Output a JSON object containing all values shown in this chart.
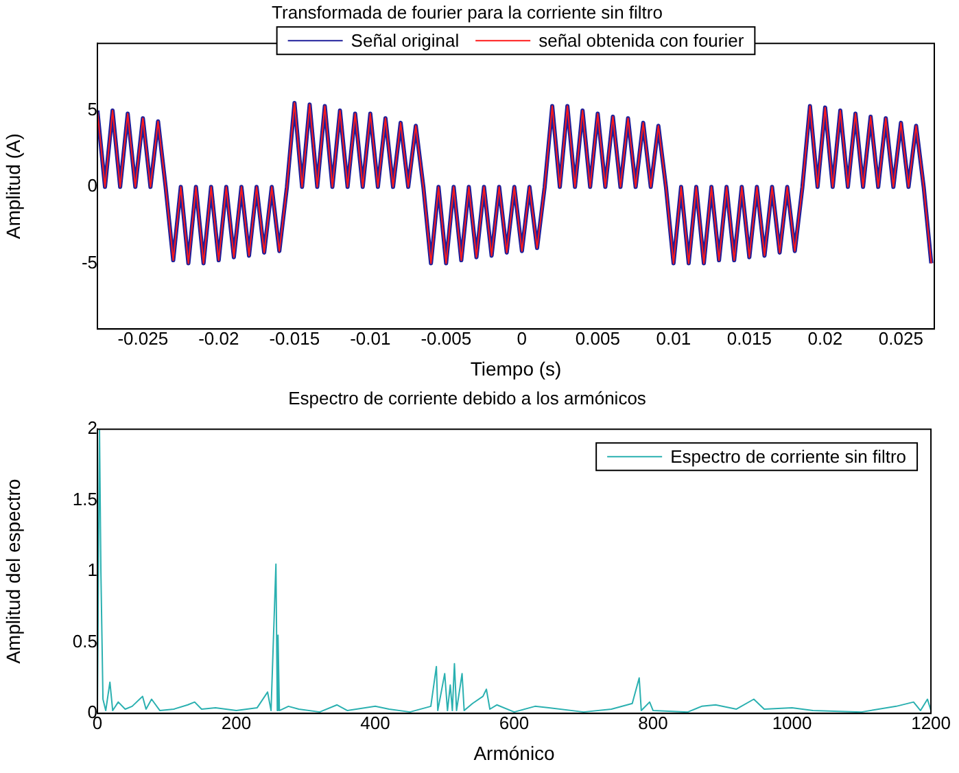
{
  "chart_data": [
    {
      "type": "line",
      "title": "Transformada de fourier para la corriente sin filtro",
      "xlabel": "Tiempo (s)",
      "ylabel": "Amplitud (A)",
      "x": [
        -0.028,
        -0.0275,
        -0.027,
        -0.0265,
        -0.026,
        -0.0255,
        -0.025,
        -0.0245,
        -0.024,
        -0.0235,
        -0.023,
        -0.0225,
        -0.022,
        -0.0215,
        -0.021,
        -0.0205,
        -0.02,
        -0.0195,
        -0.019,
        -0.0185,
        -0.018,
        -0.0175,
        -0.017,
        -0.0165,
        -0.016,
        -0.0155,
        -0.015,
        -0.0145,
        -0.014,
        -0.0135,
        -0.013,
        -0.0125,
        -0.012,
        -0.0115,
        -0.011,
        -0.0105,
        -0.01,
        -0.0095,
        -0.009,
        -0.0085,
        -0.008,
        -0.0075,
        -0.007,
        -0.0065,
        -0.006,
        -0.0055,
        -0.005,
        -0.0045,
        -0.004,
        -0.0035,
        -0.003,
        -0.0025,
        -0.002,
        -0.0015,
        -0.001,
        -0.0005,
        0,
        0.0005,
        0.001,
        0.0015,
        0.002,
        0.0025,
        0.003,
        0.0035,
        0.004,
        0.0045,
        0.005,
        0.0055,
        0.006,
        0.0065,
        0.007,
        0.0075,
        0.008,
        0.0085,
        0.009,
        0.0095,
        0.01,
        0.0105,
        0.011,
        0.0115,
        0.012,
        0.0125,
        0.013,
        0.0135,
        0.014,
        0.0145,
        0.015,
        0.0155,
        0.016,
        0.0165,
        0.017,
        0.0175,
        0.018,
        0.0185,
        0.019,
        0.0195,
        0.02,
        0.0205,
        0.021,
        0.0215,
        0.022,
        0.0225,
        0.023,
        0.0235,
        0.024,
        0.0245,
        0.025,
        0.0255,
        0.026,
        0.0265,
        0.027
      ],
      "series": [
        {
          "name": "Señal original",
          "color": "#1f1f9a",
          "values": [
            5,
            0,
            5,
            0,
            4.8,
            0,
            4.5,
            0,
            4.3,
            0,
            -4.8,
            0,
            -5,
            0,
            -5,
            0,
            -4.8,
            0,
            -4.6,
            0,
            -4.5,
            0,
            -4.3,
            0,
            -4.2,
            0,
            5.5,
            0,
            5.4,
            0,
            5.3,
            0,
            5,
            0,
            4.8,
            0,
            4.8,
            0,
            4.5,
            0,
            4.2,
            0,
            4,
            0,
            -5,
            0,
            -5,
            0,
            -4.8,
            0,
            -4.6,
            0,
            -4.5,
            0,
            -4.3,
            0,
            -4.2,
            0,
            -4,
            0,
            5.3,
            0,
            5.3,
            0,
            5,
            0,
            4.8,
            0,
            4.6,
            0,
            4.5,
            0,
            4.2,
            0,
            4,
            0,
            -5,
            0,
            -5,
            0,
            -5,
            0,
            -4.8,
            0,
            -4.8,
            0,
            -4.6,
            0,
            -4.5,
            0,
            -4.3,
            0,
            -4.2,
            0,
            5.3,
            0,
            5.2,
            0,
            5,
            0,
            4.8,
            0,
            4.6,
            0,
            4.5,
            0,
            4.2,
            0,
            4,
            0,
            -5
          ]
        },
        {
          "name": "señal obtenida con fourier",
          "color": "#ff1a1a",
          "values": [
            5,
            0,
            5,
            0,
            4.8,
            0,
            4.5,
            0,
            4.3,
            0,
            -4.8,
            0,
            -5,
            0,
            -5,
            0,
            -4.8,
            0,
            -4.6,
            0,
            -4.5,
            0,
            -4.3,
            0,
            -4.2,
            0,
            5.5,
            0,
            5.4,
            0,
            5.3,
            0,
            5,
            0,
            4.8,
            0,
            4.8,
            0,
            4.5,
            0,
            4.2,
            0,
            4,
            0,
            -5,
            0,
            -5,
            0,
            -4.8,
            0,
            -4.6,
            0,
            -4.5,
            0,
            -4.3,
            0,
            -4.2,
            0,
            -4,
            0,
            5.3,
            0,
            5.3,
            0,
            5,
            0,
            4.8,
            0,
            4.6,
            0,
            4.5,
            0,
            4.2,
            0,
            4,
            0,
            -5,
            0,
            -5,
            0,
            -5,
            0,
            -4.8,
            0,
            -4.8,
            0,
            -4.6,
            0,
            -4.5,
            0,
            -4.3,
            0,
            -4.2,
            0,
            5.3,
            0,
            5.2,
            0,
            5,
            0,
            4.8,
            0,
            4.6,
            0,
            4.5,
            0,
            4.2,
            0,
            4,
            0,
            -5
          ]
        }
      ],
      "xlim": [
        -0.028,
        0.0272
      ],
      "xticks": [
        -0.025,
        -0.02,
        -0.015,
        -0.01,
        -0.005,
        0,
        0.005,
        0.01,
        0.015,
        0.02,
        0.025
      ],
      "ylim": [
        -9.3,
        9.4
      ],
      "yticks": [
        -5,
        0,
        5
      ],
      "legend": "top",
      "grid": false
    },
    {
      "type": "line",
      "title": "Espectro de corriente debido a los armónicos",
      "xlabel": "Armónico",
      "ylabel": "Amplitud del espectro",
      "x": [
        0,
        3,
        5,
        8,
        12,
        18,
        22,
        30,
        40,
        50,
        65,
        70,
        78,
        90,
        110,
        130,
        140,
        150,
        170,
        200,
        230,
        245,
        250,
        257,
        259,
        260,
        262,
        275,
        290,
        320,
        345,
        360,
        400,
        420,
        450,
        480,
        488,
        490,
        500,
        504,
        508,
        511,
        514,
        517,
        525,
        528,
        540,
        555,
        560,
        565,
        575,
        600,
        630,
        650,
        700,
        740,
        770,
        780,
        783,
        795,
        800,
        850,
        870,
        890,
        920,
        945,
        960,
        1000,
        1030,
        1100,
        1150,
        1175,
        1185,
        1195,
        1200
      ],
      "series": [
        {
          "name": "Espectro de corriente sin filtro",
          "color": "#2ab0b0",
          "values": [
            0,
            2,
            1,
            0.1,
            0.02,
            0.22,
            0.02,
            0.08,
            0.03,
            0.05,
            0.12,
            0.03,
            0.1,
            0.02,
            0.03,
            0.06,
            0.08,
            0.03,
            0.04,
            0.02,
            0.04,
            0.15,
            0.02,
            1.05,
            0.02,
            0.55,
            0.02,
            0.05,
            0.03,
            0.01,
            0.06,
            0.02,
            0.05,
            0.03,
            0.01,
            0.05,
            0.33,
            0.02,
            0.28,
            0.02,
            0.2,
            0.02,
            0.35,
            0.02,
            0.28,
            0.02,
            0.07,
            0.12,
            0.17,
            0.03,
            0.06,
            0.01,
            0.05,
            0.04,
            0.01,
            0.03,
            0.07,
            0.25,
            0.02,
            0.08,
            0.02,
            0.01,
            0.05,
            0.06,
            0.03,
            0.1,
            0.03,
            0.04,
            0.02,
            0.01,
            0.05,
            0.08,
            0.02,
            0.1,
            0.02
          ]
        }
      ],
      "xlim": [
        0,
        1200
      ],
      "xticks": [
        0,
        200,
        400,
        600,
        800,
        1000,
        1200
      ],
      "ylim": [
        0,
        2
      ],
      "yticks": [
        0,
        0.5,
        1,
        1.5,
        2
      ],
      "legend": "top right",
      "grid": false
    }
  ]
}
